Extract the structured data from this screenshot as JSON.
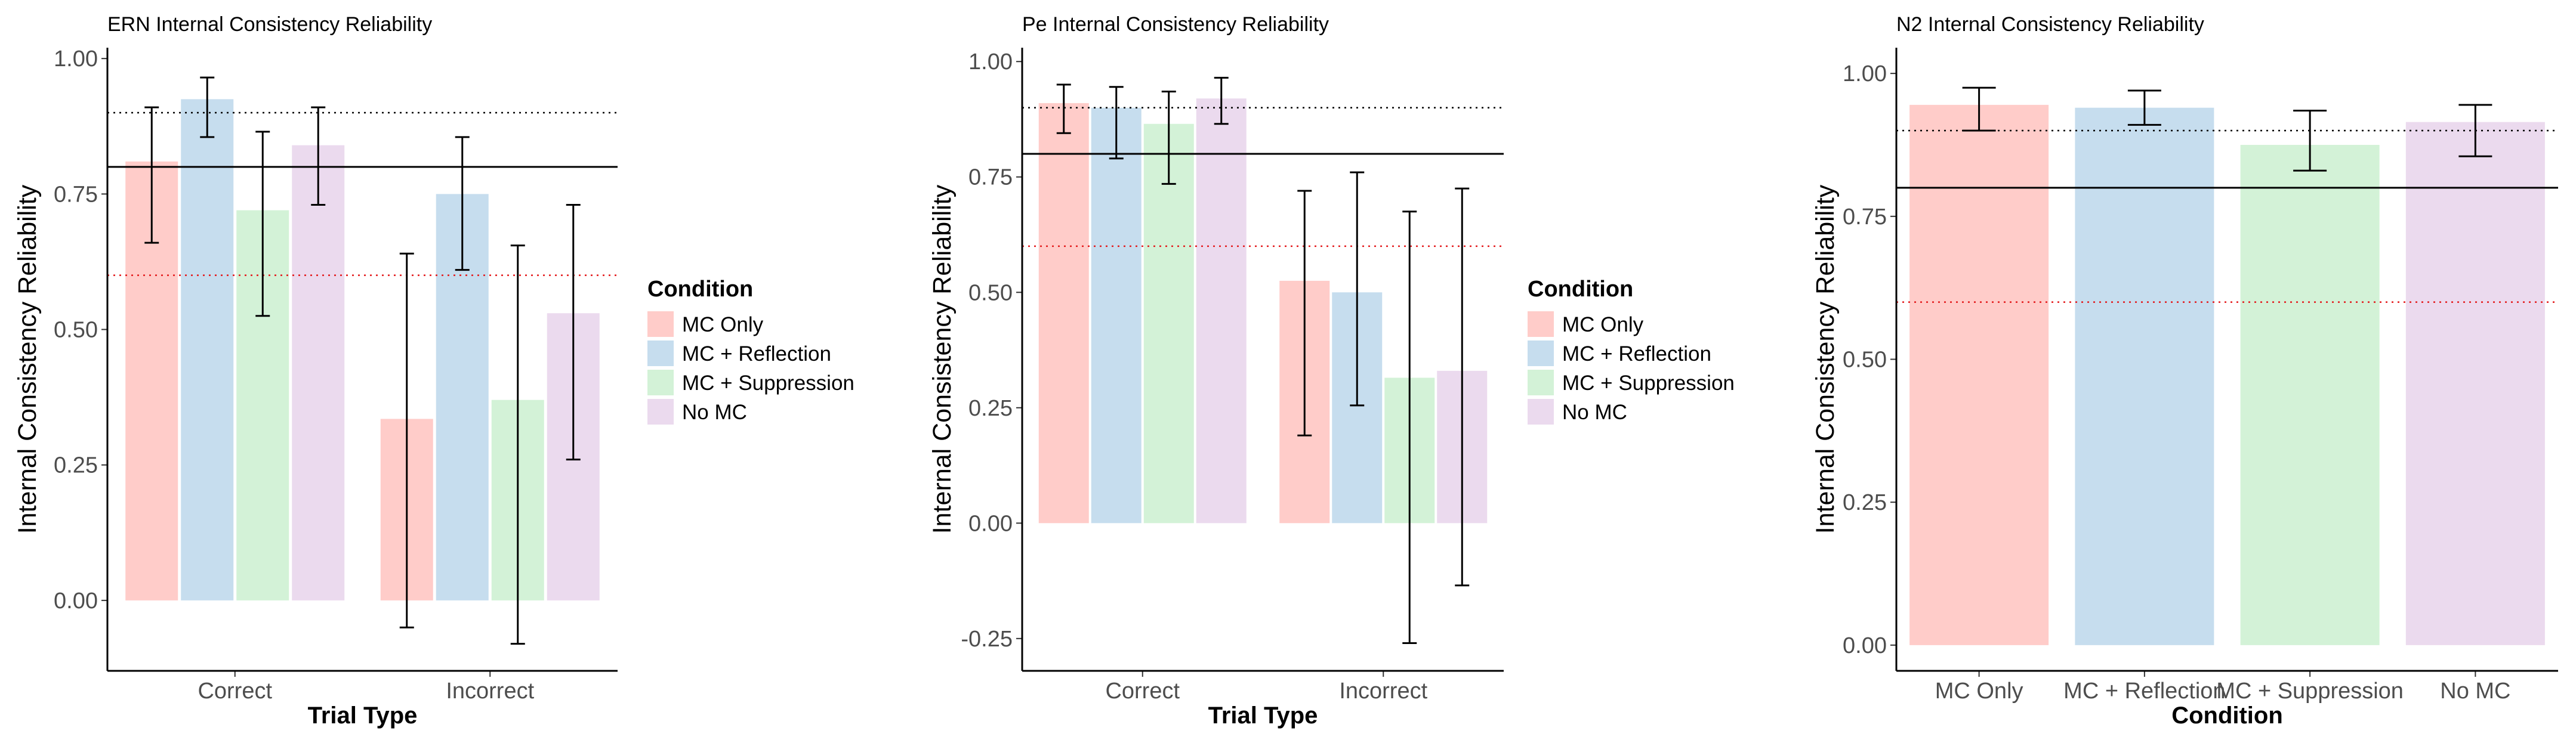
{
  "chart_data": [
    {
      "type": "bar",
      "title": "ERN Internal Consistency Reliability",
      "xlabel": "Trial Type",
      "ylabel": "Internal Consistency Reliability",
      "categories": [
        "Correct",
        "Incorrect"
      ],
      "ylim": [
        -0.13,
        1.02
      ],
      "yticks": [
        0.0,
        0.25,
        0.5,
        0.75,
        1.0
      ],
      "ytick_labels": [
        "0.00",
        "0.25",
        "0.50",
        "0.75",
        "1.00"
      ],
      "reference_lines": [
        {
          "value": 0.9,
          "style": "dotted",
          "color": "#000000"
        },
        {
          "value": 0.8,
          "style": "solid",
          "color": "#000000"
        },
        {
          "value": 0.6,
          "style": "dotted",
          "color": "#e41a1c"
        }
      ],
      "series": [
        {
          "name": "MC Only",
          "values": [
            0.81,
            0.335
          ],
          "ci_low": [
            0.66,
            -0.05
          ],
          "ci_high": [
            0.91,
            0.64
          ]
        },
        {
          "name": "MC + Reflection",
          "values": [
            0.925,
            0.75
          ],
          "ci_low": [
            0.855,
            0.61
          ],
          "ci_high": [
            0.965,
            0.855
          ]
        },
        {
          "name": "MC + Suppression",
          "values": [
            0.72,
            0.37
          ],
          "ci_low": [
            0.525,
            -0.08
          ],
          "ci_high": [
            0.865,
            0.655
          ]
        },
        {
          "name": "No MC",
          "values": [
            0.84,
            0.53
          ],
          "ci_low": [
            0.73,
            0.26
          ],
          "ci_high": [
            0.91,
            0.73
          ]
        }
      ],
      "legend": {
        "title": "Condition",
        "position": "right"
      }
    },
    {
      "type": "bar",
      "title": "Pe Internal Consistency Reliability",
      "xlabel": "Trial Type",
      "ylabel": "Internal Consistency Reliability",
      "categories": [
        "Correct",
        "Incorrect"
      ],
      "ylim": [
        -0.32,
        1.03
      ],
      "yticks": [
        -0.25,
        0.0,
        0.25,
        0.5,
        0.75,
        1.0
      ],
      "ytick_labels": [
        "-0.25",
        "0.00",
        "0.25",
        "0.50",
        "0.75",
        "1.00"
      ],
      "reference_lines": [
        {
          "value": 0.9,
          "style": "dotted",
          "color": "#000000"
        },
        {
          "value": 0.8,
          "style": "solid",
          "color": "#000000"
        },
        {
          "value": 0.6,
          "style": "dotted",
          "color": "#e41a1c"
        }
      ],
      "series": [
        {
          "name": "MC Only",
          "values": [
            0.91,
            0.525
          ],
          "ci_low": [
            0.845,
            0.19
          ],
          "ci_high": [
            0.95,
            0.72
          ]
        },
        {
          "name": "MC + Reflection",
          "values": [
            0.9,
            0.5
          ],
          "ci_low": [
            0.79,
            0.255
          ],
          "ci_high": [
            0.945,
            0.76
          ]
        },
        {
          "name": "MC + Suppression",
          "values": [
            0.865,
            0.315
          ],
          "ci_low": [
            0.735,
            -0.26
          ],
          "ci_high": [
            0.935,
            0.675
          ]
        },
        {
          "name": "No MC",
          "values": [
            0.92,
            0.33
          ],
          "ci_low": [
            0.865,
            -0.135
          ],
          "ci_high": [
            0.965,
            0.725
          ]
        }
      ],
      "legend": {
        "title": "Condition",
        "position": "right"
      }
    },
    {
      "type": "bar",
      "title": "N2 Internal Consistency Reliability",
      "xlabel": "Condition",
      "ylabel": "Internal Consistency Reliability",
      "categories": [
        "MC Only",
        "MC + Reflection",
        "MC + Suppression",
        "No MC"
      ],
      "ylim": [
        -0.045,
        1.045
      ],
      "yticks": [
        0.0,
        0.25,
        0.5,
        0.75,
        1.0
      ],
      "ytick_labels": [
        "0.00",
        "0.25",
        "0.50",
        "0.75",
        "1.00"
      ],
      "reference_lines": [
        {
          "value": 0.9,
          "style": "dotted",
          "color": "#000000"
        },
        {
          "value": 0.8,
          "style": "solid",
          "color": "#000000"
        },
        {
          "value": 0.6,
          "style": "dotted",
          "color": "#e41a1c"
        }
      ],
      "values": [
        0.945,
        0.94,
        0.875,
        0.915
      ],
      "ci_low": [
        0.9,
        0.91,
        0.83,
        0.855
      ],
      "ci_high": [
        0.975,
        0.97,
        0.935,
        0.945
      ]
    }
  ],
  "colors": {
    "MC Only": "#ffccc9",
    "MC + Reflection": "#c6ddee",
    "MC + Suppression": "#d3f2d7",
    "No MC": "#ebdaee"
  }
}
